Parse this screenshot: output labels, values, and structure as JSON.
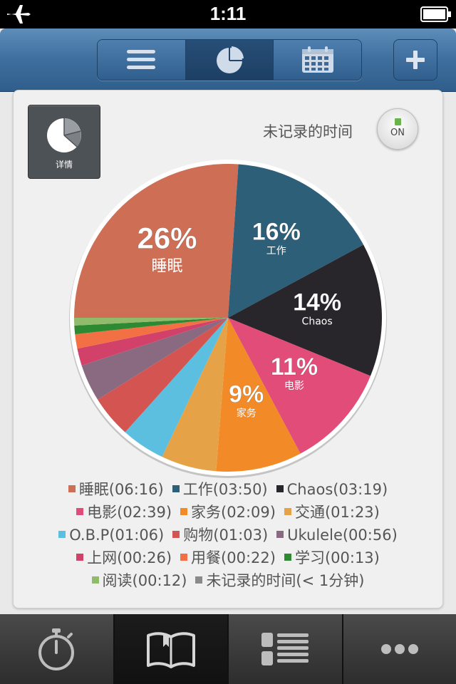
{
  "status_bar": {
    "time": "1:11"
  },
  "detail_button": {
    "label": "详情"
  },
  "unrecorded_toggle": {
    "label": "未记录的时间",
    "state": "ON"
  },
  "chart_data": {
    "type": "pie",
    "slices": [
      {
        "name": "睡眠",
        "time": "06:16",
        "percent": 26,
        "color": "#cd6e55",
        "label": "26%",
        "sublabel": "睡眠"
      },
      {
        "name": "工作",
        "time": "03:50",
        "percent": 16,
        "color": "#2e5f78",
        "label": "16%",
        "sublabel": "工作"
      },
      {
        "name": "Chaos",
        "time": "03:19",
        "percent": 14,
        "color": "#28262b",
        "label": "14%",
        "sublabel": "Chaos"
      },
      {
        "name": "电影",
        "time": "02:39",
        "percent": 11,
        "color": "#e24c78",
        "label": "11%",
        "sublabel": "电影"
      },
      {
        "name": "家务",
        "time": "02:09",
        "percent": 9,
        "color": "#f28a28",
        "label": "9%",
        "sublabel": "家务"
      },
      {
        "name": "交通",
        "time": "01:23",
        "percent": 5.8,
        "color": "#e5a246",
        "label": "",
        "sublabel": ""
      },
      {
        "name": "O.B.P",
        "time": "01:06",
        "percent": 4.6,
        "color": "#5cbfe0",
        "label": "",
        "sublabel": ""
      },
      {
        "name": "购物",
        "time": "01:03",
        "percent": 4.4,
        "color": "#d35450",
        "label": "",
        "sublabel": ""
      },
      {
        "name": "Ukulele",
        "time": "00:56",
        "percent": 3.9,
        "color": "#8a6a80",
        "label": "",
        "sublabel": ""
      },
      {
        "name": "上网",
        "time": "00:26",
        "percent": 1.8,
        "color": "#d2416a",
        "label": "",
        "sublabel": ""
      },
      {
        "name": "用餐",
        "time": "00:22",
        "percent": 1.5,
        "color": "#f27044",
        "label": "",
        "sublabel": ""
      },
      {
        "name": "学习",
        "time": "00:13",
        "percent": 0.9,
        "color": "#2e8a32",
        "label": "",
        "sublabel": ""
      },
      {
        "name": "阅读",
        "time": "00:12",
        "percent": 0.8,
        "color": "#8fbb6a",
        "label": "",
        "sublabel": ""
      },
      {
        "name": "未记录的时间",
        "time": "< 1分钟",
        "percent": 0,
        "color": "#8a8a8a",
        "label": "",
        "sublabel": ""
      }
    ]
  },
  "legend": {
    "rows": [
      [
        {
          "text": "睡眠(06:16)",
          "color": "#cd6e55"
        },
        {
          "text": "工作(03:50)",
          "color": "#2e5f78"
        },
        {
          "text": "Chaos(03:19)",
          "color": "#28262b"
        }
      ],
      [
        {
          "text": "电影(02:39)",
          "color": "#e24c78"
        },
        {
          "text": "家务(02:09)",
          "color": "#f28a28"
        },
        {
          "text": "交通(01:23)",
          "color": "#e5a246"
        }
      ],
      [
        {
          "text": "O.B.P(01:06)",
          "color": "#5cbfe0"
        },
        {
          "text": "购物(01:03)",
          "color": "#d35450"
        },
        {
          "text": "Ukulele(00:56)",
          "color": "#8a6a80"
        }
      ],
      [
        {
          "text": "上网(00:26)",
          "color": "#d2416a"
        },
        {
          "text": "用餐(00:22)",
          "color": "#f27044"
        },
        {
          "text": "学习(00:13)",
          "color": "#2e8a32"
        }
      ],
      [
        {
          "text": "阅读(00:12)",
          "color": "#8fbb6a"
        },
        {
          "text": "未记录的时间(< 1分钟)",
          "color": "#8a8a8a"
        }
      ]
    ]
  },
  "nav": {
    "active_segment": "pie-chart-icon"
  },
  "tabbar": {
    "active_tab": "book-icon"
  }
}
